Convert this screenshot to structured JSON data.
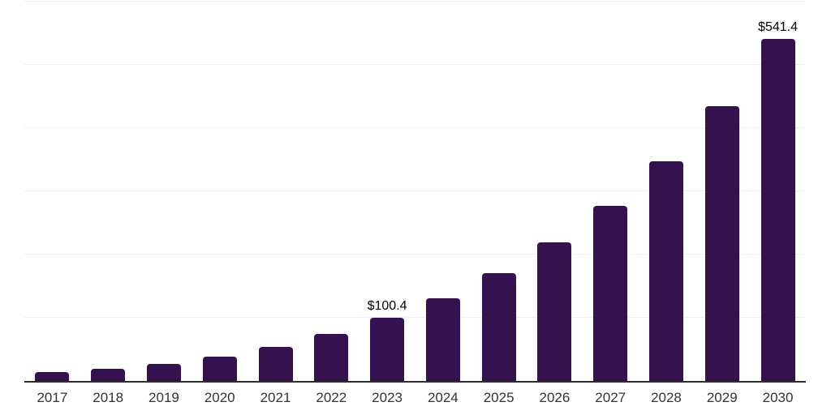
{
  "chart_data": {
    "type": "bar",
    "title": "",
    "xlabel": "",
    "ylabel": "",
    "categories": [
      "2017",
      "2018",
      "2019",
      "2020",
      "2021",
      "2022",
      "2023",
      "2024",
      "2025",
      "2026",
      "2027",
      "2028",
      "2029",
      "2030"
    ],
    "values": [
      13.9,
      19.3,
      27.3,
      38.1,
      53.5,
      74.1,
      100.4,
      131.1,
      170.4,
      219.7,
      277.4,
      347.8,
      435.2,
      541.4
    ],
    "data_labels": [
      "",
      "",
      "",
      "",
      "",
      "",
      "$100.4",
      "",
      "",
      "",
      "",
      "",
      "",
      "$541.4"
    ],
    "value_prefix": "$",
    "ylim": [
      0,
      600
    ],
    "gridlines": [
      0,
      100,
      200,
      300,
      400,
      500,
      600
    ],
    "grid": "horizontal-only",
    "y_tick_labels_visible": false,
    "legend_position": "none",
    "colors": {
      "bar": "#351150",
      "axis_line": "#2e2e2e",
      "gridline": "#efefef",
      "x_tick_label": "#333333",
      "data_label": "#000000",
      "background": "#ffffff"
    }
  }
}
